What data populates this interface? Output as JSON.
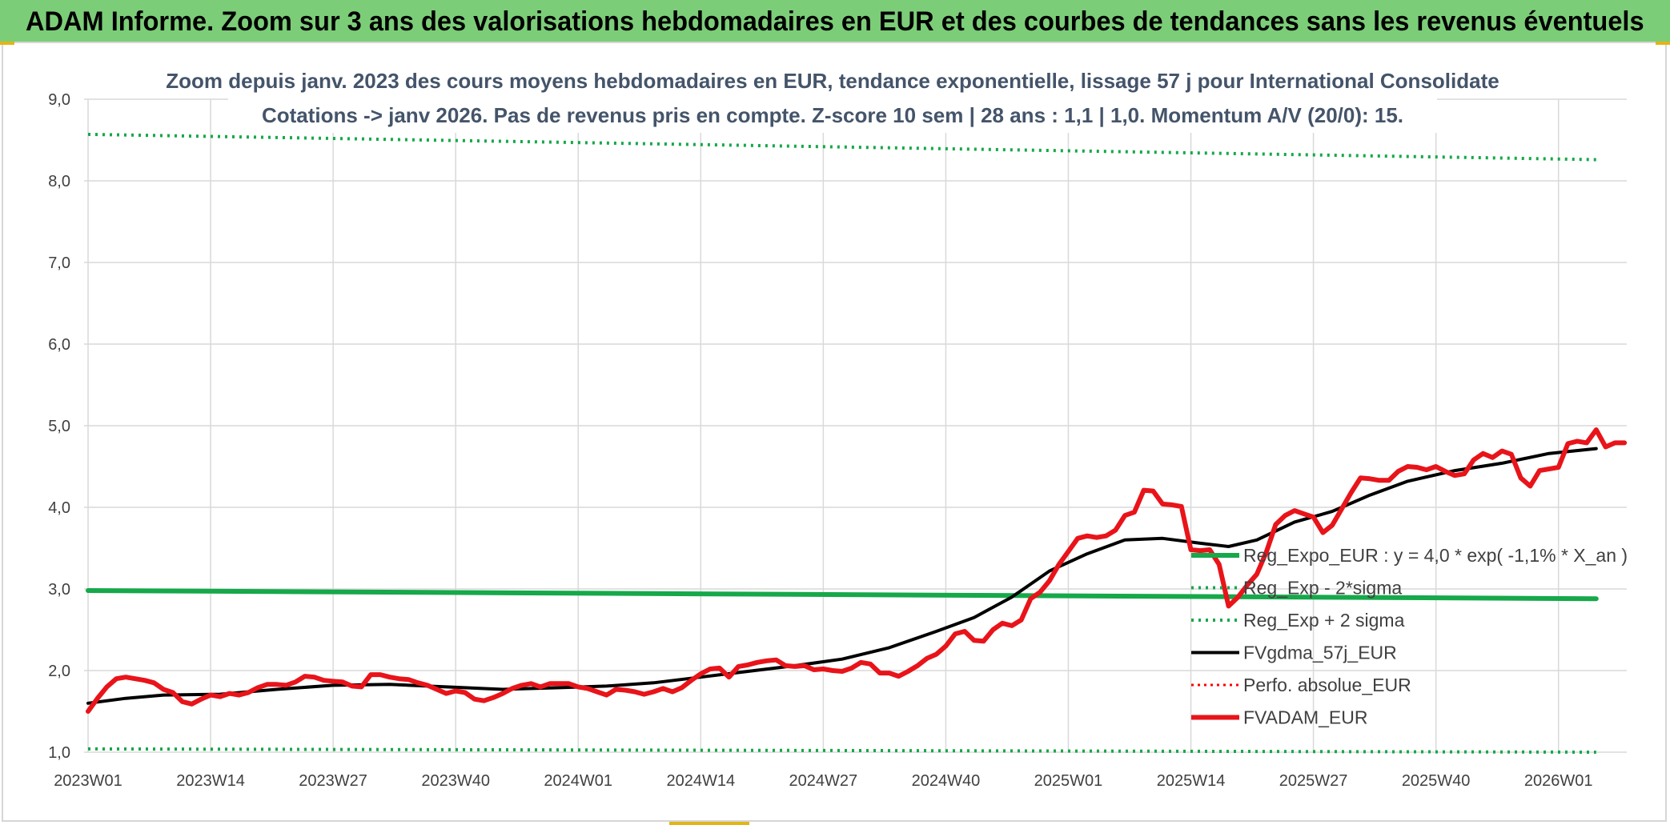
{
  "banner": {
    "title": "ADAM Informe. Zoom sur 3 ans des valorisations hebdomadaires en EUR et des courbes de tendances sans les revenus éventuels"
  },
  "colors": {
    "banner_bg": "#7ccd78",
    "accent_gold": "#e3b516",
    "trend_green": "#16a84a",
    "price_red": "#e8141a",
    "smooth_black": "#000000",
    "perf_red": "#ff0000",
    "grid": "#d9d9d9"
  },
  "chart_data": {
    "type": "line",
    "title_lines": [
      "Zoom depuis janv. 2023 des cours moyens hebdomadaires en EUR, tendance exponentielle, lissage 57 j pour International Consolidate",
      "Cotations -> janv 2026. Pas de revenus pris en compte. Z-score 10 sem | 28 ans : 1,1 | 1,0. Momentum A/V (20/0): 15."
    ],
    "x_tick_labels": [
      "2023W01",
      "2023W14",
      "2023W27",
      "2023W40",
      "2024W01",
      "2024W14",
      "2024W27",
      "2024W40",
      "2025W01",
      "2025W14",
      "2025W27",
      "2025W40",
      "2026W01"
    ],
    "x_tick_week_index": [
      0,
      13,
      26,
      39,
      52,
      65,
      78,
      91,
      104,
      117,
      130,
      143,
      156
    ],
    "x_range_weeks": [
      0,
      160
    ],
    "y_tick_labels": [
      "1,0",
      "2,0",
      "3,0",
      "4,0",
      "5,0",
      "6,0",
      "7,0",
      "8,0",
      "9,0"
    ],
    "y_ticks": [
      1,
      2,
      3,
      4,
      5,
      6,
      7,
      8,
      9
    ],
    "ylim": [
      1,
      9
    ],
    "grid": true,
    "legend_position": "right-middle",
    "series": [
      {
        "name": "Reg_Expo_EUR : y = 4,0 * exp( -1,1% *  X_an )",
        "style": "thick-solid-green",
        "points": [
          [
            0,
            2.98
          ],
          [
            160,
            2.88
          ]
        ]
      },
      {
        "name": "Reg_Exp - 2*sigma",
        "style": "dotted-green",
        "points": [
          [
            0,
            1.04
          ],
          [
            160,
            1.0
          ]
        ]
      },
      {
        "name": "Reg_Exp + 2 sigma",
        "style": "dotted-green",
        "points": [
          [
            0,
            8.57
          ],
          [
            160,
            8.26
          ]
        ]
      },
      {
        "name": "FVgdma_57j_EUR",
        "style": "solid-black",
        "points": [
          [
            0,
            1.6
          ],
          [
            4,
            1.66
          ],
          [
            8,
            1.7
          ],
          [
            14,
            1.71
          ],
          [
            20,
            1.77
          ],
          [
            26,
            1.82
          ],
          [
            32,
            1.83
          ],
          [
            38,
            1.8
          ],
          [
            44,
            1.77
          ],
          [
            50,
            1.79
          ],
          [
            55,
            1.81
          ],
          [
            60,
            1.85
          ],
          [
            65,
            1.92
          ],
          [
            70,
            1.99
          ],
          [
            75,
            2.06
          ],
          [
            80,
            2.14
          ],
          [
            85,
            2.28
          ],
          [
            90,
            2.48
          ],
          [
            94,
            2.65
          ],
          [
            98,
            2.9
          ],
          [
            102,
            3.22
          ],
          [
            106,
            3.43
          ],
          [
            110,
            3.6
          ],
          [
            114,
            3.62
          ],
          [
            118,
            3.56
          ],
          [
            121,
            3.52
          ],
          [
            124,
            3.6
          ],
          [
            128,
            3.82
          ],
          [
            132,
            3.95
          ],
          [
            136,
            4.15
          ],
          [
            140,
            4.32
          ],
          [
            145,
            4.45
          ],
          [
            150,
            4.54
          ],
          [
            155,
            4.66
          ],
          [
            160,
            4.72
          ]
        ]
      },
      {
        "name": "Perfo. absolue_EUR",
        "style": "dotted-red",
        "points": []
      },
      {
        "name": "FVADAM_EUR",
        "style": "thick-solid-red",
        "points": [
          [
            0,
            1.5
          ],
          [
            1,
            1.66
          ],
          [
            2,
            1.8
          ],
          [
            3,
            1.9
          ],
          [
            4,
            1.92
          ],
          [
            5,
            1.9
          ],
          [
            6,
            1.88
          ],
          [
            7,
            1.85
          ],
          [
            8,
            1.77
          ],
          [
            9,
            1.73
          ],
          [
            10,
            1.62
          ],
          [
            11,
            1.59
          ],
          [
            12,
            1.65
          ],
          [
            13,
            1.7
          ],
          [
            14,
            1.68
          ],
          [
            15,
            1.72
          ],
          [
            16,
            1.7
          ],
          [
            17,
            1.73
          ],
          [
            18,
            1.79
          ],
          [
            19,
            1.83
          ],
          [
            20,
            1.83
          ],
          [
            21,
            1.82
          ],
          [
            22,
            1.86
          ],
          [
            23,
            1.93
          ],
          [
            24,
            1.92
          ],
          [
            25,
            1.88
          ],
          [
            26,
            1.87
          ],
          [
            27,
            1.86
          ],
          [
            28,
            1.81
          ],
          [
            29,
            1.8
          ],
          [
            30,
            1.95
          ],
          [
            31,
            1.95
          ],
          [
            32,
            1.92
          ],
          [
            33,
            1.9
          ],
          [
            34,
            1.89
          ],
          [
            35,
            1.85
          ],
          [
            36,
            1.82
          ],
          [
            37,
            1.77
          ],
          [
            38,
            1.72
          ],
          [
            39,
            1.75
          ],
          [
            40,
            1.73
          ],
          [
            41,
            1.65
          ],
          [
            42,
            1.63
          ],
          [
            43,
            1.67
          ],
          [
            44,
            1.72
          ],
          [
            45,
            1.78
          ],
          [
            46,
            1.82
          ],
          [
            47,
            1.84
          ],
          [
            48,
            1.8
          ],
          [
            49,
            1.84
          ],
          [
            50,
            1.84
          ],
          [
            51,
            1.84
          ],
          [
            52,
            1.8
          ],
          [
            53,
            1.78
          ],
          [
            54,
            1.74
          ],
          [
            55,
            1.7
          ],
          [
            56,
            1.77
          ],
          [
            57,
            1.76
          ],
          [
            58,
            1.74
          ],
          [
            59,
            1.71
          ],
          [
            60,
            1.74
          ],
          [
            61,
            1.78
          ],
          [
            62,
            1.74
          ],
          [
            63,
            1.79
          ],
          [
            64,
            1.88
          ],
          [
            65,
            1.96
          ],
          [
            66,
            2.02
          ],
          [
            67,
            2.03
          ],
          [
            68,
            1.92
          ],
          [
            69,
            2.05
          ],
          [
            70,
            2.07
          ],
          [
            71,
            2.1
          ],
          [
            72,
            2.12
          ],
          [
            73,
            2.13
          ],
          [
            74,
            2.06
          ],
          [
            75,
            2.05
          ],
          [
            76,
            2.06
          ],
          [
            77,
            2.01
          ],
          [
            78,
            2.02
          ],
          [
            79,
            2.0
          ],
          [
            80,
            1.99
          ],
          [
            81,
            2.03
          ],
          [
            82,
            2.1
          ],
          [
            83,
            2.08
          ],
          [
            84,
            1.97
          ],
          [
            85,
            1.97
          ],
          [
            86,
            1.93
          ],
          [
            87,
            1.99
          ],
          [
            88,
            2.06
          ],
          [
            89,
            2.15
          ],
          [
            90,
            2.2
          ],
          [
            91,
            2.3
          ],
          [
            92,
            2.45
          ],
          [
            93,
            2.48
          ],
          [
            94,
            2.37
          ],
          [
            95,
            2.36
          ],
          [
            96,
            2.5
          ],
          [
            97,
            2.58
          ],
          [
            98,
            2.55
          ],
          [
            99,
            2.62
          ],
          [
            100,
            2.88
          ],
          [
            101,
            2.96
          ],
          [
            102,
            3.1
          ],
          [
            103,
            3.3
          ],
          [
            104,
            3.46
          ],
          [
            105,
            3.62
          ],
          [
            106,
            3.65
          ],
          [
            107,
            3.63
          ],
          [
            108,
            3.65
          ],
          [
            109,
            3.72
          ],
          [
            110,
            3.9
          ],
          [
            111,
            3.94
          ],
          [
            112,
            4.21
          ],
          [
            113,
            4.2
          ],
          [
            114,
            4.04
          ],
          [
            115,
            4.03
          ],
          [
            116,
            4.01
          ],
          [
            117,
            3.48
          ],
          [
            118,
            3.47
          ],
          [
            119,
            3.48
          ],
          [
            120,
            3.3
          ],
          [
            121,
            2.79
          ],
          [
            122,
            2.9
          ],
          [
            123,
            3.05
          ],
          [
            124,
            3.18
          ],
          [
            125,
            3.45
          ],
          [
            126,
            3.79
          ],
          [
            127,
            3.9
          ],
          [
            128,
            3.96
          ],
          [
            129,
            3.92
          ],
          [
            130,
            3.88
          ],
          [
            131,
            3.69
          ],
          [
            132,
            3.78
          ],
          [
            133,
            3.98
          ],
          [
            134,
            4.18
          ],
          [
            135,
            4.36
          ],
          [
            136,
            4.35
          ],
          [
            137,
            4.33
          ],
          [
            138,
            4.33
          ],
          [
            139,
            4.44
          ],
          [
            140,
            4.5
          ],
          [
            141,
            4.49
          ],
          [
            142,
            4.46
          ],
          [
            143,
            4.5
          ],
          [
            144,
            4.44
          ],
          [
            145,
            4.39
          ],
          [
            146,
            4.41
          ],
          [
            147,
            4.58
          ],
          [
            148,
            4.66
          ],
          [
            149,
            4.61
          ],
          [
            150,
            4.69
          ],
          [
            151,
            4.65
          ],
          [
            152,
            4.36
          ],
          [
            153,
            4.26
          ],
          [
            154,
            4.45
          ],
          [
            155,
            4.47
          ],
          [
            156,
            4.49
          ],
          [
            157,
            4.78
          ],
          [
            158,
            4.81
          ],
          [
            159,
            4.79
          ],
          [
            160,
            4.95
          ],
          [
            161,
            4.74
          ],
          [
            162,
            4.79
          ],
          [
            163,
            4.79
          ]
        ]
      }
    ]
  }
}
